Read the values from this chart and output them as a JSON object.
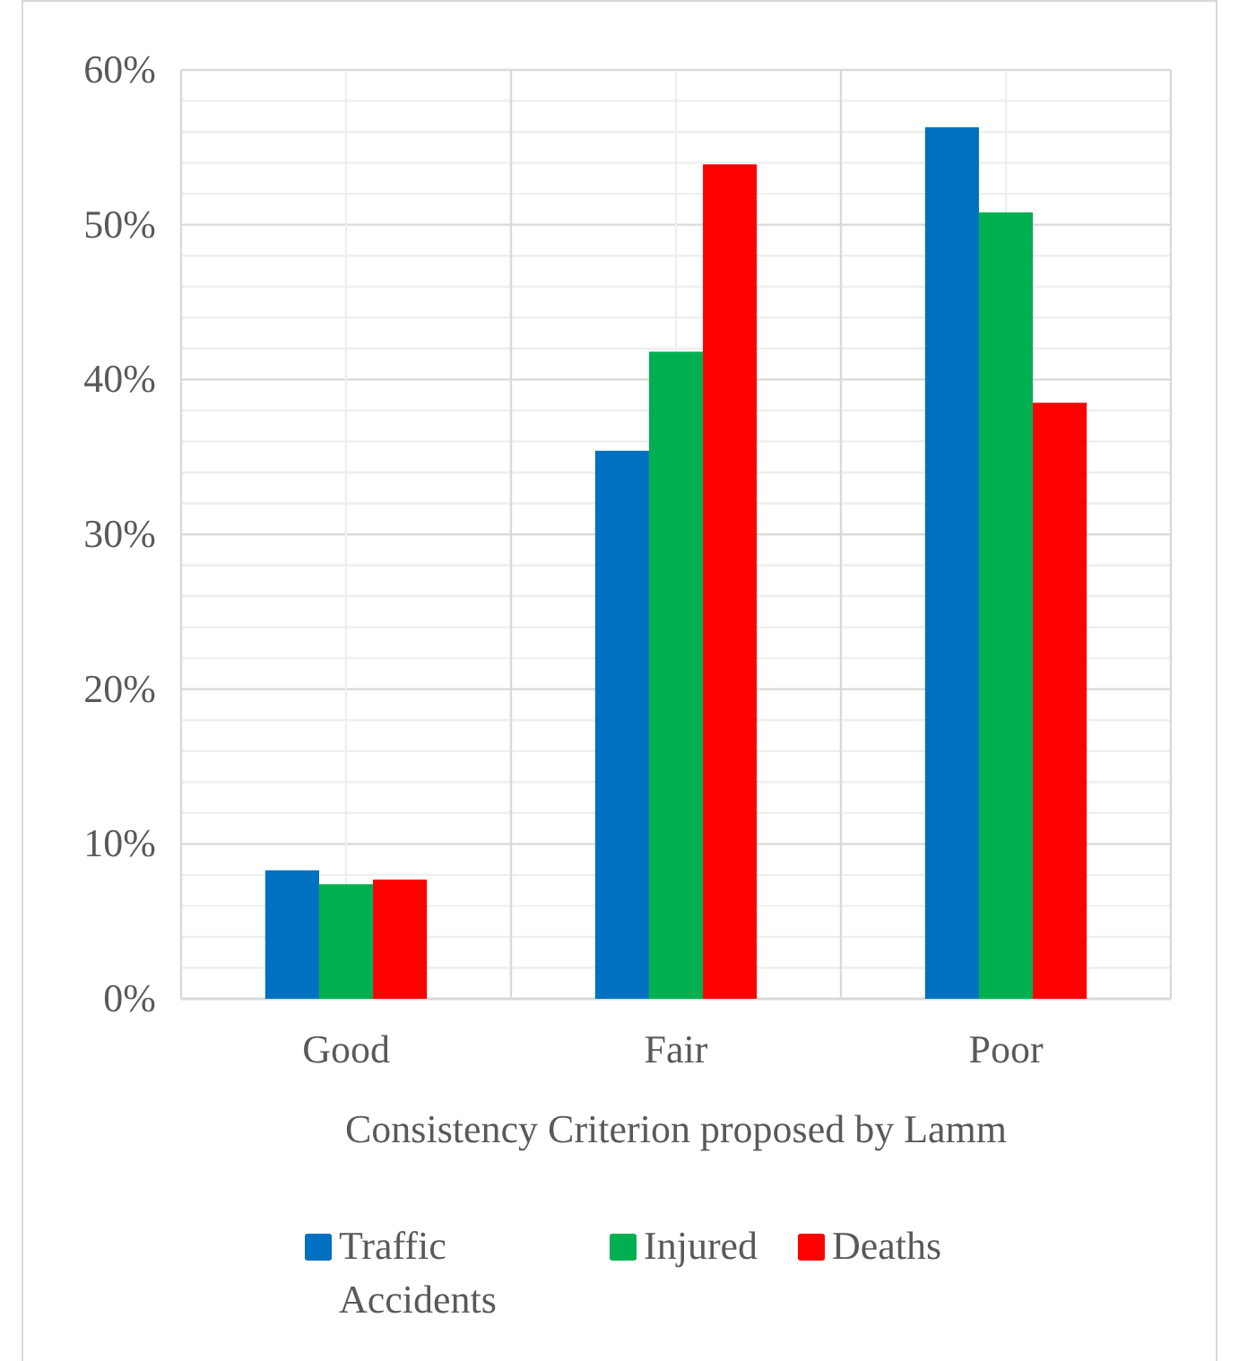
{
  "chart_data": {
    "type": "bar",
    "xlabel": "Consistency Criterion proposed by Lamm",
    "categories": [
      "Good",
      "Fair",
      "Poor"
    ],
    "series": [
      {
        "name": "Traffic Accidents",
        "color": "#0070c0",
        "values": [
          8.3,
          35.4,
          56.3
        ]
      },
      {
        "name": "Injured",
        "color": "#00b050",
        "values": [
          7.4,
          41.8,
          50.8
        ]
      },
      {
        "name": "Deaths",
        "color": "#ff0000",
        "values": [
          7.7,
          53.9,
          38.5
        ]
      }
    ],
    "ylim": [
      0,
      60
    ],
    "yticks": [
      {
        "value": 0,
        "label": "0%"
      },
      {
        "value": 2,
        "label": null
      },
      {
        "value": 4,
        "label": null
      },
      {
        "value": 6,
        "label": null
      },
      {
        "value": 8,
        "label": null
      },
      {
        "value": 10,
        "label": "10%"
      },
      {
        "value": 12,
        "label": null
      },
      {
        "value": 14,
        "label": null
      },
      {
        "value": 16,
        "label": null
      },
      {
        "value": 18,
        "label": null
      },
      {
        "value": 20,
        "label": "20%"
      },
      {
        "value": 22,
        "label": null
      },
      {
        "value": 24,
        "label": null
      },
      {
        "value": 26,
        "label": null
      },
      {
        "value": 28,
        "label": null
      },
      {
        "value": 30,
        "label": "30%"
      },
      {
        "value": 32,
        "label": null
      },
      {
        "value": 34,
        "label": null
      },
      {
        "value": 36,
        "label": null
      },
      {
        "value": 38,
        "label": null
      },
      {
        "value": 40,
        "label": "40%"
      },
      {
        "value": 42,
        "label": null
      },
      {
        "value": 44,
        "label": null
      },
      {
        "value": 46,
        "label": null
      },
      {
        "value": 48,
        "label": null
      },
      {
        "value": 50,
        "label": "50%"
      },
      {
        "value": 52,
        "label": null
      },
      {
        "value": 54,
        "label": null
      },
      {
        "value": 56,
        "label": null
      },
      {
        "value": 58,
        "label": null
      },
      {
        "value": 60,
        "label": "60%"
      }
    ],
    "grid": true,
    "legend": "bottom"
  }
}
